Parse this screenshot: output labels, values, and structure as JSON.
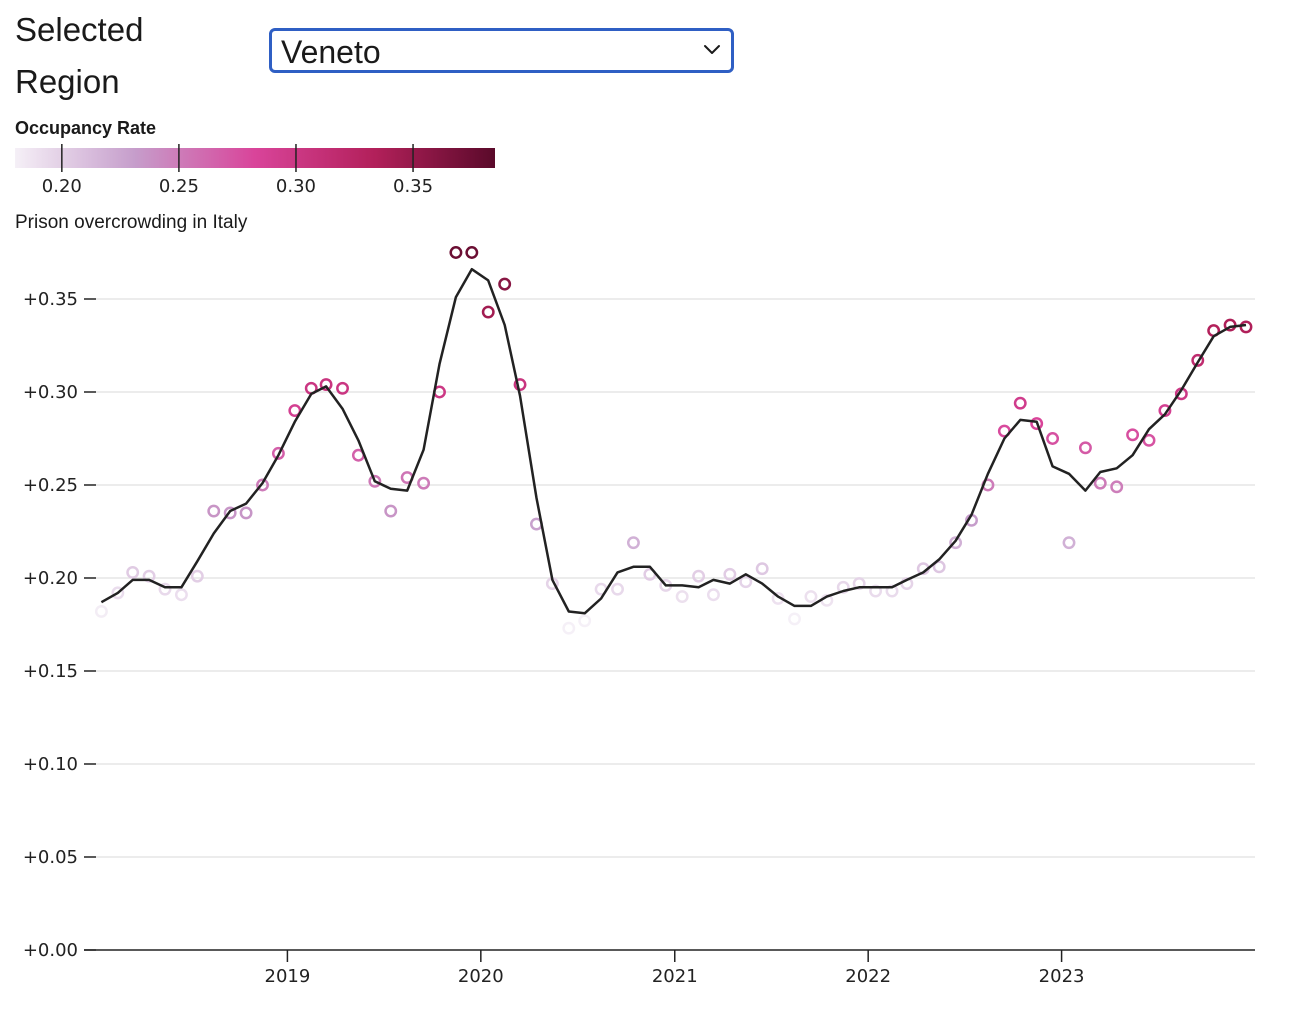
{
  "selector": {
    "label": "Selected Region",
    "selected": "Veneto",
    "icon": "chevron-down-icon"
  },
  "legend": {
    "title": "Occupancy Rate",
    "domain": [
      0.18,
      0.385
    ],
    "ticks": [
      "0.20",
      "0.25",
      "0.30",
      "0.35"
    ],
    "tick_values": [
      0.2,
      0.25,
      0.3,
      0.35
    ],
    "color_scheme": [
      "#f5f0f7",
      "#c69dcb",
      "#d9449a",
      "#b2205a",
      "#5a0a2a"
    ]
  },
  "chart_subtitle": "Prison overcrowding in Italy",
  "chart_data": {
    "type": "scatter",
    "title": "",
    "xlabel": "",
    "ylabel": "",
    "ylim": [
      0,
      0.375
    ],
    "xlim": [
      "2018-01-01",
      "2023-12-31"
    ],
    "y_ticks": [
      "+0.00",
      "+0.05",
      "+0.10",
      "+0.15",
      "+0.20",
      "+0.25",
      "+0.30",
      "+0.35"
    ],
    "y_tick_values": [
      0,
      0.05,
      0.1,
      0.15,
      0.2,
      0.25,
      0.3,
      0.35
    ],
    "x_ticks": [
      "2019",
      "2020",
      "2021",
      "2022",
      "2023"
    ],
    "grid": true,
    "series": [
      {
        "kind": "points",
        "x": [
          "2018-01",
          "2018-02",
          "2018-03",
          "2018-04",
          "2018-05",
          "2018-06",
          "2018-07",
          "2018-08",
          "2018-09",
          "2018-10",
          "2018-11",
          "2018-12",
          "2019-01",
          "2019-02",
          "2019-03",
          "2019-04",
          "2019-05",
          "2019-06",
          "2019-07",
          "2019-08",
          "2019-09",
          "2019-10",
          "2019-11",
          "2019-12",
          "2020-01",
          "2020-02",
          "2020-03",
          "2020-04",
          "2020-05",
          "2020-06",
          "2020-07",
          "2020-08",
          "2020-09",
          "2020-10",
          "2020-11",
          "2020-12",
          "2021-01",
          "2021-02",
          "2021-03",
          "2021-04",
          "2021-05",
          "2021-06",
          "2021-07",
          "2021-08",
          "2021-09",
          "2021-10",
          "2021-11",
          "2021-12",
          "2022-01",
          "2022-02",
          "2022-03",
          "2022-04",
          "2022-05",
          "2022-06",
          "2022-07",
          "2022-08",
          "2022-09",
          "2022-10",
          "2022-11",
          "2022-12",
          "2023-01",
          "2023-02",
          "2023-03",
          "2023-04",
          "2023-05",
          "2023-06",
          "2023-07",
          "2023-08",
          "2023-09",
          "2023-10",
          "2023-11",
          "2023-12"
        ],
        "y": [
          0.182,
          0.192,
          0.203,
          0.201,
          0.194,
          0.191,
          0.201,
          0.236,
          0.235,
          0.235,
          0.25,
          0.267,
          0.29,
          0.302,
          0.304,
          0.302,
          0.266,
          0.252,
          0.236,
          0.254,
          0.251,
          0.3,
          0.375,
          0.375,
          0.343,
          0.358,
          0.304,
          0.229,
          0.197,
          0.173,
          0.177,
          0.194,
          0.194,
          0.219,
          0.202,
          0.196,
          0.19,
          0.201,
          0.191,
          0.202,
          0.198,
          0.205,
          0.189,
          0.178,
          0.19,
          0.188,
          0.195,
          0.197,
          0.193,
          0.193,
          0.197,
          0.205,
          0.206,
          0.219,
          0.231,
          0.25,
          0.279,
          0.294,
          0.283,
          0.275,
          0.219,
          0.27,
          0.251,
          0.249,
          0.277,
          0.274,
          0.29,
          0.299,
          0.317,
          0.333,
          0.336,
          0.335
        ]
      },
      {
        "kind": "line",
        "x": [
          "2018-01",
          "2018-02",
          "2018-03",
          "2018-04",
          "2018-05",
          "2018-06",
          "2018-07",
          "2018-08",
          "2018-09",
          "2018-10",
          "2018-11",
          "2018-12",
          "2019-01",
          "2019-02",
          "2019-03",
          "2019-04",
          "2019-05",
          "2019-06",
          "2019-07",
          "2019-08",
          "2019-09",
          "2019-10",
          "2019-11",
          "2019-12",
          "2020-01",
          "2020-02",
          "2020-03",
          "2020-04",
          "2020-05",
          "2020-06",
          "2020-07",
          "2020-08",
          "2020-09",
          "2020-10",
          "2020-11",
          "2020-12",
          "2021-01",
          "2021-02",
          "2021-03",
          "2021-04",
          "2021-05",
          "2021-06",
          "2021-07",
          "2021-08",
          "2021-09",
          "2021-10",
          "2021-11",
          "2021-12",
          "2022-01",
          "2022-02",
          "2022-03",
          "2022-04",
          "2022-05",
          "2022-06",
          "2022-07",
          "2022-08",
          "2022-09",
          "2022-10",
          "2022-11",
          "2022-12",
          "2023-01",
          "2023-02",
          "2023-03",
          "2023-04",
          "2023-05",
          "2023-06",
          "2023-07",
          "2023-08",
          "2023-09",
          "2023-10",
          "2023-11",
          "2023-12"
        ],
        "y": [
          0.187,
          0.192,
          0.199,
          0.199,
          0.195,
          0.195,
          0.209,
          0.224,
          0.236,
          0.24,
          0.251,
          0.266,
          0.284,
          0.299,
          0.303,
          0.291,
          0.274,
          0.252,
          0.248,
          0.247,
          0.269,
          0.315,
          0.351,
          0.366,
          0.36,
          0.336,
          0.298,
          0.243,
          0.199,
          0.182,
          0.181,
          0.189,
          0.203,
          0.206,
          0.206,
          0.196,
          0.196,
          0.195,
          0.199,
          0.197,
          0.202,
          0.197,
          0.19,
          0.185,
          0.185,
          0.19,
          0.193,
          0.195,
          0.195,
          0.195,
          0.199,
          0.203,
          0.21,
          0.22,
          0.234,
          0.256,
          0.275,
          0.285,
          0.284,
          0.26,
          0.256,
          0.247,
          0.257,
          0.259,
          0.266,
          0.28,
          0.288,
          0.301,
          0.316,
          0.33,
          0.335,
          0.336
        ]
      }
    ]
  }
}
